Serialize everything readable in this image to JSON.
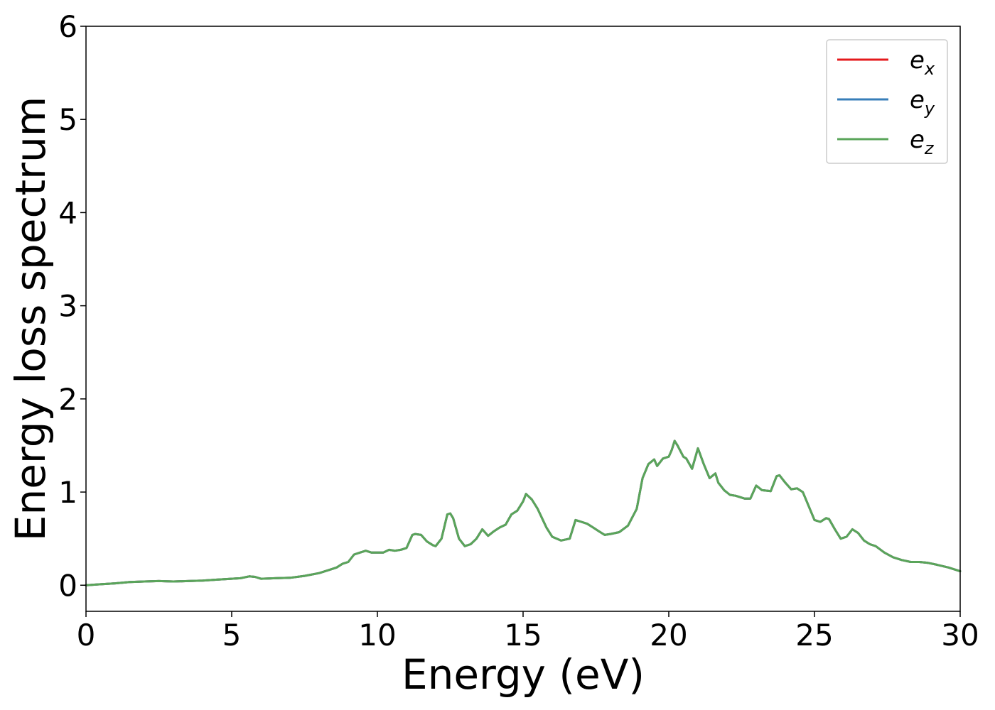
{
  "chart_data": {
    "type": "line",
    "xlabel": "Energy (eV)",
    "ylabel": "Energy loss spectrum",
    "xlim": [
      0,
      30
    ],
    "ylim": [
      -0.28,
      6
    ],
    "xticks": [
      0,
      5,
      10,
      15,
      20,
      25,
      30
    ],
    "yticks": [
      0,
      1,
      2,
      3,
      4,
      5,
      6
    ],
    "xtick_labels": [
      "0",
      "5",
      "10",
      "15",
      "20",
      "25",
      "30"
    ],
    "ytick_labels": [
      "0",
      "1",
      "2",
      "3",
      "4",
      "5",
      "6"
    ],
    "grid": false,
    "legend_position": "top-right",
    "x": [
      0,
      0.5,
      1.0,
      1.5,
      2.0,
      2.5,
      3.0,
      3.5,
      4.0,
      4.5,
      5.0,
      5.3,
      5.6,
      5.8,
      6.0,
      6.5,
      7.0,
      7.5,
      8.0,
      8.3,
      8.6,
      8.8,
      9.0,
      9.2,
      9.4,
      9.6,
      9.8,
      10.0,
      10.2,
      10.4,
      10.6,
      10.8,
      11.0,
      11.2,
      11.3,
      11.5,
      11.7,
      11.9,
      12.0,
      12.2,
      12.4,
      12.5,
      12.6,
      12.8,
      13.0,
      13.2,
      13.4,
      13.6,
      13.8,
      14.0,
      14.2,
      14.4,
      14.6,
      14.8,
      15.0,
      15.1,
      15.3,
      15.5,
      15.8,
      16.0,
      16.3,
      16.6,
      16.8,
      17.0,
      17.2,
      17.4,
      17.6,
      17.8,
      18.0,
      18.3,
      18.6,
      18.9,
      19.1,
      19.3,
      19.5,
      19.6,
      19.8,
      20.0,
      20.1,
      20.2,
      20.3,
      20.5,
      20.6,
      20.8,
      21.0,
      21.2,
      21.4,
      21.6,
      21.7,
      21.9,
      22.1,
      22.3,
      22.6,
      22.8,
      23.0,
      23.2,
      23.5,
      23.7,
      23.8,
      24.0,
      24.2,
      24.4,
      24.6,
      24.8,
      25.0,
      25.2,
      25.4,
      25.5,
      25.7,
      25.9,
      26.1,
      26.3,
      26.5,
      26.7,
      26.9,
      27.1,
      27.4,
      27.7,
      28.0,
      28.3,
      28.6,
      28.9,
      29.2,
      29.6,
      30.0
    ],
    "series": [
      {
        "name": "e_x",
        "name_base": "e",
        "name_sub": "x",
        "color": "#e41a1c",
        "values": [
          0.0,
          0.01,
          0.02,
          0.035,
          0.04,
          0.045,
          0.04,
          0.045,
          0.05,
          0.06,
          0.07,
          0.075,
          0.095,
          0.09,
          0.07,
          0.075,
          0.08,
          0.1,
          0.13,
          0.16,
          0.19,
          0.23,
          0.25,
          0.33,
          0.35,
          0.37,
          0.35,
          0.35,
          0.35,
          0.38,
          0.37,
          0.38,
          0.4,
          0.54,
          0.55,
          0.54,
          0.47,
          0.43,
          0.42,
          0.5,
          0.76,
          0.77,
          0.72,
          0.5,
          0.42,
          0.44,
          0.5,
          0.6,
          0.53,
          0.58,
          0.62,
          0.65,
          0.76,
          0.8,
          0.9,
          0.98,
          0.92,
          0.82,
          0.62,
          0.52,
          0.48,
          0.5,
          0.7,
          0.68,
          0.66,
          0.62,
          0.58,
          0.54,
          0.55,
          0.57,
          0.64,
          0.82,
          1.15,
          1.3,
          1.35,
          1.28,
          1.36,
          1.38,
          1.45,
          1.55,
          1.5,
          1.38,
          1.36,
          1.25,
          1.47,
          1.3,
          1.15,
          1.2,
          1.1,
          1.02,
          0.97,
          0.96,
          0.93,
          0.93,
          1.07,
          1.02,
          1.01,
          1.17,
          1.18,
          1.1,
          1.03,
          1.04,
          1.0,
          0.85,
          0.7,
          0.68,
          0.72,
          0.71,
          0.6,
          0.5,
          0.52,
          0.6,
          0.56,
          0.48,
          0.44,
          0.42,
          0.35,
          0.3,
          0.27,
          0.25,
          0.25,
          0.24,
          0.22,
          0.19,
          0.15
        ]
      },
      {
        "name": "e_y",
        "name_base": "e",
        "name_sub": "y",
        "color": "#377eb8",
        "values": [
          0.0,
          0.01,
          0.02,
          0.035,
          0.04,
          0.045,
          0.04,
          0.045,
          0.05,
          0.06,
          0.07,
          0.075,
          0.095,
          0.09,
          0.07,
          0.075,
          0.08,
          0.1,
          0.13,
          0.16,
          0.19,
          0.23,
          0.25,
          0.33,
          0.35,
          0.37,
          0.35,
          0.35,
          0.35,
          0.38,
          0.37,
          0.38,
          0.4,
          0.54,
          0.55,
          0.54,
          0.47,
          0.43,
          0.42,
          0.5,
          0.76,
          0.77,
          0.72,
          0.5,
          0.42,
          0.44,
          0.5,
          0.6,
          0.53,
          0.58,
          0.62,
          0.65,
          0.76,
          0.8,
          0.9,
          0.98,
          0.92,
          0.82,
          0.62,
          0.52,
          0.48,
          0.5,
          0.7,
          0.68,
          0.66,
          0.62,
          0.58,
          0.54,
          0.55,
          0.57,
          0.64,
          0.82,
          1.15,
          1.3,
          1.35,
          1.28,
          1.36,
          1.38,
          1.45,
          1.55,
          1.5,
          1.38,
          1.36,
          1.25,
          1.47,
          1.3,
          1.15,
          1.2,
          1.1,
          1.02,
          0.97,
          0.96,
          0.93,
          0.93,
          1.07,
          1.02,
          1.01,
          1.17,
          1.18,
          1.1,
          1.03,
          1.04,
          1.0,
          0.85,
          0.7,
          0.68,
          0.72,
          0.71,
          0.6,
          0.5,
          0.52,
          0.6,
          0.56,
          0.48,
          0.44,
          0.42,
          0.35,
          0.3,
          0.27,
          0.25,
          0.25,
          0.24,
          0.22,
          0.19,
          0.15
        ]
      },
      {
        "name": "e_z",
        "name_base": "e",
        "name_sub": "z",
        "color": "#5aa55a",
        "values": [
          0.0,
          0.01,
          0.02,
          0.035,
          0.04,
          0.045,
          0.04,
          0.045,
          0.05,
          0.06,
          0.07,
          0.075,
          0.095,
          0.09,
          0.07,
          0.075,
          0.08,
          0.1,
          0.13,
          0.16,
          0.19,
          0.23,
          0.25,
          0.33,
          0.35,
          0.37,
          0.35,
          0.35,
          0.35,
          0.38,
          0.37,
          0.38,
          0.4,
          0.54,
          0.55,
          0.54,
          0.47,
          0.43,
          0.42,
          0.5,
          0.76,
          0.77,
          0.72,
          0.5,
          0.42,
          0.44,
          0.5,
          0.6,
          0.53,
          0.58,
          0.62,
          0.65,
          0.76,
          0.8,
          0.9,
          0.98,
          0.92,
          0.82,
          0.62,
          0.52,
          0.48,
          0.5,
          0.7,
          0.68,
          0.66,
          0.62,
          0.58,
          0.54,
          0.55,
          0.57,
          0.64,
          0.82,
          1.15,
          1.3,
          1.35,
          1.28,
          1.36,
          1.38,
          1.45,
          1.55,
          1.5,
          1.38,
          1.36,
          1.25,
          1.47,
          1.3,
          1.15,
          1.2,
          1.1,
          1.02,
          0.97,
          0.96,
          0.93,
          0.93,
          1.07,
          1.02,
          1.01,
          1.17,
          1.18,
          1.1,
          1.03,
          1.04,
          1.0,
          0.85,
          0.7,
          0.68,
          0.72,
          0.71,
          0.6,
          0.5,
          0.52,
          0.6,
          0.56,
          0.48,
          0.44,
          0.42,
          0.35,
          0.3,
          0.27,
          0.25,
          0.25,
          0.24,
          0.22,
          0.19,
          0.15
        ]
      }
    ]
  }
}
